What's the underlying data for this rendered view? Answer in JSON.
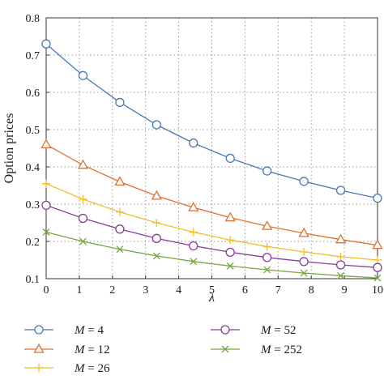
{
  "chart_data": {
    "type": "line",
    "xlabel": "λ",
    "ylabel": "Option prices",
    "xlim": [
      0,
      10
    ],
    "ylim": [
      0.1,
      0.8
    ],
    "xticks": [
      0,
      1,
      2,
      3,
      4,
      5,
      6,
      7,
      8,
      9,
      10
    ],
    "yticks": [
      0.1,
      0.2,
      0.3,
      0.4,
      0.5,
      0.6,
      0.7,
      0.8
    ],
    "grid": true,
    "legend_position": "bottom",
    "x": [
      0,
      1.111,
      2.222,
      3.333,
      4.444,
      5.556,
      6.667,
      7.778,
      8.889,
      10
    ],
    "series": [
      {
        "name": "M = 4",
        "marker": "circle",
        "color": "#4a78b5",
        "values": [
          0.73,
          0.645,
          0.573,
          0.513,
          0.464,
          0.423,
          0.389,
          0.361,
          0.337,
          0.316
        ]
      },
      {
        "name": "M = 12",
        "marker": "triangle",
        "color": "#e07030",
        "values": [
          0.46,
          0.405,
          0.36,
          0.322,
          0.291,
          0.264,
          0.241,
          0.222,
          0.205,
          0.19
        ]
      },
      {
        "name": "M = 26",
        "marker": "plus",
        "color": "#f2be26",
        "values": [
          0.355,
          0.313,
          0.279,
          0.25,
          0.225,
          0.204,
          0.186,
          0.172,
          0.159,
          0.15
        ]
      },
      {
        "name": "M = 52",
        "marker": "circle",
        "color": "#8a3d9a",
        "values": [
          0.297,
          0.262,
          0.233,
          0.208,
          0.188,
          0.171,
          0.157,
          0.146,
          0.137,
          0.13
        ]
      },
      {
        "name": "M = 252",
        "marker": "x",
        "color": "#77a643",
        "values": [
          0.225,
          0.2,
          0.179,
          0.161,
          0.146,
          0.134,
          0.124,
          0.115,
          0.108,
          0.102
        ]
      }
    ]
  }
}
